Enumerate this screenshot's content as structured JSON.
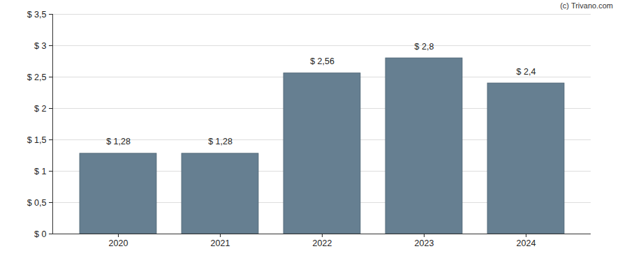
{
  "chart_data": {
    "type": "bar",
    "annotations": [
      "(c) Trivano.com"
    ],
    "categories": [
      "2020",
      "2021",
      "2022",
      "2023",
      "2024"
    ],
    "values": [
      1.28,
      1.28,
      2.56,
      2.8,
      2.4
    ],
    "value_labels": [
      "$ 1,28",
      "$ 1,28",
      "$ 2,56",
      "$ 2,8",
      "$ 2,4"
    ],
    "data_labels": true,
    "color": "#667f91",
    "ylim": [
      0,
      3.5
    ],
    "yticks": [
      {
        "value": 0,
        "label": "$ 0"
      },
      {
        "value": 0.5,
        "label": "$ 0,5"
      },
      {
        "value": 1,
        "label": "$ 1"
      },
      {
        "value": 1.5,
        "label": "$ 1,5"
      },
      {
        "value": 2,
        "label": "$ 2"
      },
      {
        "value": 2.5,
        "label": "$ 2,5"
      },
      {
        "value": 3,
        "label": "$ 3"
      },
      {
        "value": 3.5,
        "label": "$ 3,5"
      }
    ],
    "grid": true
  }
}
